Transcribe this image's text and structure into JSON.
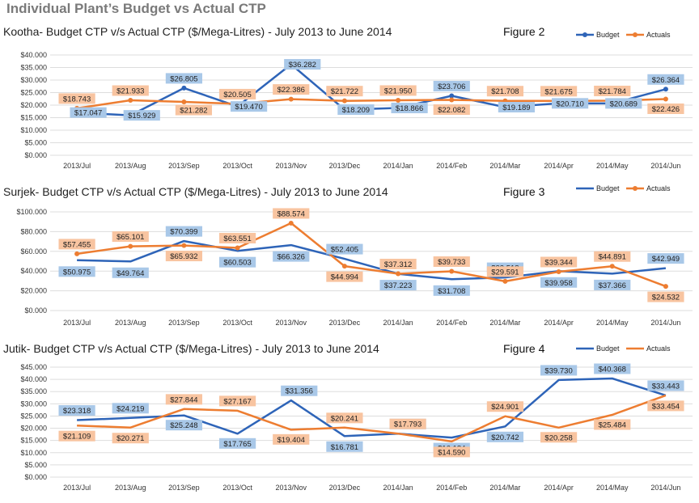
{
  "page_title": "Individual Plant’s Budget vs Actual CTP",
  "colors": {
    "budget": "#2e64b8",
    "actuals": "#ed7d31",
    "budget_label_bg": "#a9c8e8",
    "actuals_label_bg": "#f8c4a0",
    "grid": "#dddddd"
  },
  "chart_data": [
    {
      "type": "line",
      "title": "Kootha- Budget CTP v/s Actual CTP ($/Mega-Litres) - July 2013 to June 2014",
      "figure_label": "Figure 2",
      "legend_position": "top-right",
      "categories": [
        "2013/Jul",
        "2013/Aug",
        "2013/Sep",
        "2013/Oct",
        "2013/Nov",
        "2013/Dec",
        "2014/Jan",
        "2014/Feb",
        "2014/Mar",
        "2014/Apr",
        "2014/May",
        "2014/Jun"
      ],
      "yticks": [
        "$0.000",
        "$5.000",
        "$10.000",
        "$15.000",
        "$20.000",
        "$25.000",
        "$30.000",
        "$35.000",
        "$40.000"
      ],
      "ylim": [
        0,
        40
      ],
      "series": [
        {
          "name": "Budget",
          "markers": true,
          "values": [
            17.047,
            15.929,
            26.805,
            19.47,
            36.282,
            18.209,
            18.866,
            23.706,
            19.189,
            20.71,
            20.689,
            26.364
          ],
          "labels": [
            "$17.047",
            "$15.929",
            "$26.805",
            "$19.470",
            "$36.282",
            "$18.209",
            "$18.866",
            "$23.706",
            "$19.189",
            "$20.710",
            "$20.689",
            "$26.364"
          ]
        },
        {
          "name": "Actuals",
          "markers": true,
          "values": [
            18.743,
            21.933,
            21.282,
            20.505,
            22.386,
            21.722,
            21.95,
            22.082,
            21.708,
            21.675,
            21.784,
            22.426
          ],
          "labels": [
            "$18.743",
            "$21.933",
            "$21.282",
            "$20.505",
            "$22.386",
            "$21.722",
            "$21.950",
            "$22.082",
            "$21.708",
            "$21.675",
            "$21.784",
            "$22.426"
          ]
        }
      ]
    },
    {
      "type": "line",
      "title": "Surjek- Budget CTP v/s Actual CTP  ($/Mega-Litres) - July 2013 to June 2014",
      "figure_label": "Figure 3",
      "legend_position": "top-right",
      "categories": [
        "2013/Jul",
        "2013/Aug",
        "2013/Sep",
        "2013/Oct",
        "2013/Nov",
        "2013/Dec",
        "2014/Jan",
        "2014/Feb",
        "2014/Mar",
        "2014/Apr",
        "2014/May",
        "2014/Jun"
      ],
      "yticks": [
        "$0.000",
        "$20.000",
        "$40.000",
        "$60.000",
        "$80.000",
        "$100.000"
      ],
      "ylim": [
        0,
        100
      ],
      "series": [
        {
          "name": "Budget",
          "markers": false,
          "values": [
            50.975,
            49.764,
            70.399,
            60.503,
            66.326,
            52.405,
            37.223,
            31.708,
            33.518,
            39.958,
            37.366,
            42.949
          ],
          "labels": [
            "$50.975",
            "$49.764",
            "$70.399",
            "$60.503",
            "$66.326",
            "$52.405",
            "$37.223",
            "$31.708",
            "$33.518",
            "$39.958",
            "$37.366",
            "$42.949"
          ]
        },
        {
          "name": "Actuals",
          "markers": true,
          "values": [
            57.455,
            65.101,
            65.932,
            63.551,
            88.574,
            44.994,
            37.312,
            39.733,
            29.591,
            39.344,
            44.891,
            24.532
          ],
          "labels": [
            "$57.455",
            "$65.101",
            "$65.932",
            "$63.551",
            "$88.574",
            "$44.994",
            "$37.312",
            "$39.733",
            "$29.591",
            "$39.344",
            "$44.891",
            "$24.532"
          ]
        }
      ]
    },
    {
      "type": "line",
      "title": "Jutik- Budget CTP v/s Actual CTP  ($/Mega-Litres) - July 2013 to June 2014",
      "figure_label": "Figure 4",
      "legend_position": "top-right",
      "categories": [
        "2013/Jul",
        "2013/Aug",
        "2013/Sep",
        "2013/Oct",
        "2013/Nov",
        "2013/Dec",
        "2014/Jan",
        "2014/Feb",
        "2014/Mar",
        "2014/Apr",
        "2014/May",
        "2014/Jun"
      ],
      "yticks": [
        "$0.000",
        "$5.000",
        "$10.000",
        "$15.000",
        "$20.000",
        "$25.000",
        "$30.000",
        "$35.000",
        "$40.000",
        "$45.000"
      ],
      "ylim": [
        0,
        45
      ],
      "series": [
        {
          "name": "Budget",
          "markers": false,
          "values": [
            23.318,
            24.219,
            25.248,
            17.765,
            31.356,
            16.781,
            17.757,
            16.184,
            20.742,
            39.73,
            40.368,
            33.443
          ],
          "labels": [
            "$23.318",
            "$24.219",
            "$25.248",
            "$17.765",
            "$31.356",
            "$16.781",
            "$17.757",
            "$16.184",
            "$20.742",
            "$39.730",
            "$40.368",
            "$33.443"
          ]
        },
        {
          "name": "Actuals",
          "markers": false,
          "values": [
            21.109,
            20.271,
            27.844,
            27.167,
            19.404,
            20.241,
            17.793,
            14.59,
            24.901,
            20.258,
            25.484,
            33.454
          ],
          "labels": [
            "$21.109",
            "$20.271",
            "$27.844",
            "$27.167",
            "$19.404",
            "$20.241",
            "$17.793",
            "$14.590",
            "$24.901",
            "$20.258",
            "$25.484",
            "$33.454"
          ]
        }
      ]
    }
  ]
}
